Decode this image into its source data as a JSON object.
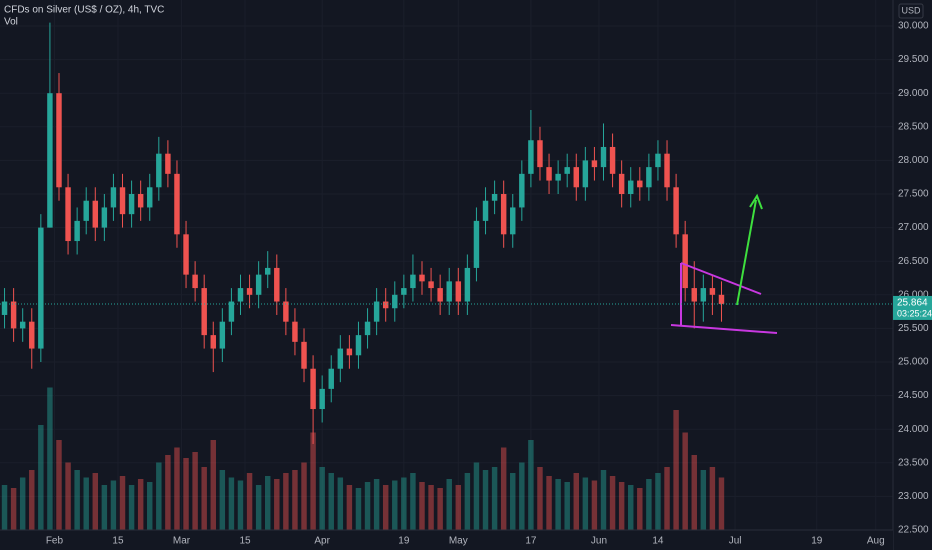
{
  "chart_data": {
    "type": "candlestick",
    "title": "CFDs on Silver (US$ / OZ), 4h, TVC",
    "volume_label": "Vol",
    "currency": "USD",
    "x": [
      21,
      23,
      25,
      27,
      29,
      31,
      33,
      35,
      37,
      39,
      41,
      43,
      45,
      47,
      49,
      51,
      53,
      55,
      57,
      59,
      61,
      63,
      65,
      67,
      69,
      71,
      73,
      75,
      77,
      79,
      81,
      83,
      85,
      87,
      89,
      91,
      93,
      95,
      97,
      99,
      101,
      103,
      105,
      107,
      109,
      111,
      113,
      115,
      117,
      119,
      121,
      123,
      125,
      127,
      129,
      131,
      133,
      135,
      137,
      139,
      141,
      143,
      145,
      147,
      149,
      151,
      153,
      155,
      157,
      159,
      161,
      163,
      165,
      167,
      169,
      171,
      173,
      175,
      177,
      179
    ],
    "open": [
      25.7,
      25.9,
      25.5,
      25.6,
      25.2,
      27.0,
      29.0,
      27.6,
      26.8,
      27.1,
      27.4,
      27.0,
      27.3,
      27.6,
      27.2,
      27.5,
      27.3,
      27.6,
      28.1,
      27.8,
      26.9,
      26.3,
      26.1,
      25.4,
      25.2,
      25.6,
      25.9,
      26.1,
      26.0,
      26.3,
      26.4,
      25.9,
      25.6,
      25.3,
      24.9,
      24.3,
      24.6,
      24.9,
      25.2,
      25.1,
      25.4,
      25.6,
      25.9,
      25.8,
      26.0,
      26.1,
      26.3,
      26.2,
      26.1,
      25.9,
      26.2,
      25.9,
      26.4,
      27.1,
      27.4,
      27.5,
      26.9,
      27.3,
      27.8,
      28.3,
      27.9,
      27.7,
      27.8,
      27.9,
      27.6,
      28.0,
      27.9,
      28.2,
      27.8,
      27.5,
      27.7,
      27.6,
      27.9,
      28.1,
      27.6,
      26.9,
      26.1,
      25.9,
      26.1,
      26.0
    ],
    "high": [
      26.1,
      26.1,
      25.8,
      25.8,
      27.2,
      30.05,
      29.3,
      27.8,
      27.3,
      27.6,
      27.6,
      27.5,
      27.8,
      27.8,
      27.7,
      27.7,
      27.8,
      28.35,
      28.3,
      28.0,
      27.1,
      26.5,
      26.3,
      25.6,
      25.8,
      26.1,
      26.3,
      26.3,
      26.5,
      26.65,
      26.6,
      26.1,
      25.8,
      25.5,
      25.1,
      24.8,
      25.1,
      25.4,
      25.4,
      25.6,
      25.8,
      26.1,
      26.1,
      26.2,
      26.3,
      26.6,
      26.5,
      26.4,
      26.3,
      26.4,
      26.4,
      26.6,
      27.3,
      27.6,
      27.7,
      27.7,
      27.5,
      28.0,
      28.75,
      28.5,
      28.1,
      28.0,
      28.1,
      28.1,
      28.2,
      28.2,
      28.55,
      28.4,
      28.0,
      27.9,
      27.9,
      28.1,
      28.3,
      28.3,
      27.8,
      27.1,
      26.5,
      26.3,
      26.3,
      26.2
    ],
    "low": [
      25.5,
      25.3,
      25.3,
      24.9,
      25.0,
      27.0,
      27.4,
      26.6,
      26.6,
      26.9,
      26.8,
      26.8,
      27.1,
      27.0,
      27.0,
      27.1,
      27.1,
      27.4,
      27.6,
      26.7,
      26.1,
      25.9,
      25.2,
      24.85,
      25.0,
      25.4,
      25.7,
      25.8,
      25.8,
      26.1,
      25.7,
      25.4,
      25.1,
      24.7,
      23.78,
      24.1,
      24.4,
      24.7,
      24.9,
      24.9,
      25.2,
      25.4,
      25.6,
      25.6,
      25.8,
      25.9,
      26.0,
      25.9,
      25.7,
      25.7,
      25.7,
      25.7,
      26.2,
      26.9,
      27.2,
      26.7,
      26.7,
      27.1,
      27.6,
      27.7,
      27.5,
      27.5,
      27.6,
      27.4,
      27.4,
      27.7,
      27.7,
      27.6,
      27.3,
      27.3,
      27.4,
      27.4,
      27.7,
      27.4,
      26.7,
      25.9,
      25.5,
      25.6,
      25.7,
      25.6
    ],
    "close": [
      25.9,
      25.5,
      25.6,
      25.2,
      27.0,
      29.0,
      27.6,
      26.8,
      27.1,
      27.4,
      27.0,
      27.3,
      27.6,
      27.2,
      27.5,
      27.3,
      27.6,
      28.1,
      27.8,
      26.9,
      26.3,
      26.1,
      25.4,
      25.2,
      25.6,
      25.9,
      26.1,
      26.0,
      26.3,
      26.4,
      25.9,
      25.6,
      25.3,
      24.9,
      24.3,
      24.6,
      24.9,
      25.2,
      25.1,
      25.4,
      25.6,
      25.9,
      25.8,
      26.0,
      26.1,
      26.3,
      26.2,
      26.1,
      25.9,
      26.2,
      25.9,
      26.4,
      27.1,
      27.4,
      27.5,
      26.9,
      27.3,
      27.8,
      28.3,
      27.9,
      27.7,
      27.8,
      27.9,
      27.6,
      28.0,
      27.9,
      28.2,
      27.8,
      27.5,
      27.7,
      27.6,
      27.9,
      28.1,
      27.6,
      26.9,
      26.1,
      25.9,
      26.1,
      26.0,
      25.864
    ],
    "volume": [
      30,
      28,
      35,
      40,
      70,
      95,
      60,
      45,
      40,
      35,
      38,
      30,
      33,
      36,
      30,
      34,
      32,
      45,
      50,
      55,
      48,
      52,
      42,
      60,
      40,
      35,
      33,
      38,
      30,
      36,
      34,
      38,
      40,
      45,
      65,
      42,
      38,
      35,
      30,
      28,
      32,
      34,
      30,
      33,
      35,
      38,
      32,
      30,
      28,
      34,
      30,
      38,
      45,
      40,
      42,
      55,
      38,
      45,
      60,
      42,
      36,
      34,
      32,
      38,
      35,
      33,
      40,
      36,
      32,
      30,
      28,
      34,
      38,
      42,
      80,
      65,
      50,
      40,
      42,
      35
    ],
    "up_color": "#26a69a",
    "down_color": "#ef5350",
    "xlim": [
      20,
      216.8
    ],
    "xticks": [
      {
        "value": 32,
        "label": "Feb"
      },
      {
        "value": 46,
        "label": "15"
      },
      {
        "value": 60,
        "label": "Mar"
      },
      {
        "value": 74,
        "label": "15"
      },
      {
        "value": 91,
        "label": "Apr"
      },
      {
        "value": 109,
        "label": "19"
      },
      {
        "value": 121,
        "label": "May"
      },
      {
        "value": 137,
        "label": "17"
      },
      {
        "value": 152,
        "label": "Jun"
      },
      {
        "value": 165,
        "label": "14"
      },
      {
        "value": 182,
        "label": "Jul"
      },
      {
        "value": 200,
        "label": "19"
      },
      {
        "value": 213,
        "label": "Aug"
      }
    ],
    "ylim": [
      22.5,
      30.387
    ],
    "yticks": [
      {
        "value": 30,
        "label": "30.000"
      },
      {
        "value": 29.5,
        "label": "29.500"
      },
      {
        "value": 29,
        "label": "29.000"
      },
      {
        "value": 28.5,
        "label": "28.500"
      },
      {
        "value": 28,
        "label": "28.000"
      },
      {
        "value": 27.5,
        "label": "27.500"
      },
      {
        "value": 27,
        "label": "27.000"
      },
      {
        "value": 26.5,
        "label": "26.500"
      },
      {
        "value": 26,
        "label": "26.000"
      },
      {
        "value": 25.5,
        "label": "25.500"
      },
      {
        "value": 25,
        "label": "25.000"
      },
      {
        "value": 24.5,
        "label": "24.500"
      },
      {
        "value": 24,
        "label": "24.000"
      },
      {
        "value": 23.5,
        "label": "23.500"
      },
      {
        "value": 23,
        "label": "23.000"
      },
      {
        "value": 22.5,
        "label": "22.500"
      }
    ],
    "y2lim": [
      0,
      100
    ],
    "last_price": 25.864,
    "countdown": "03:25:24",
    "grid": true
  }
}
